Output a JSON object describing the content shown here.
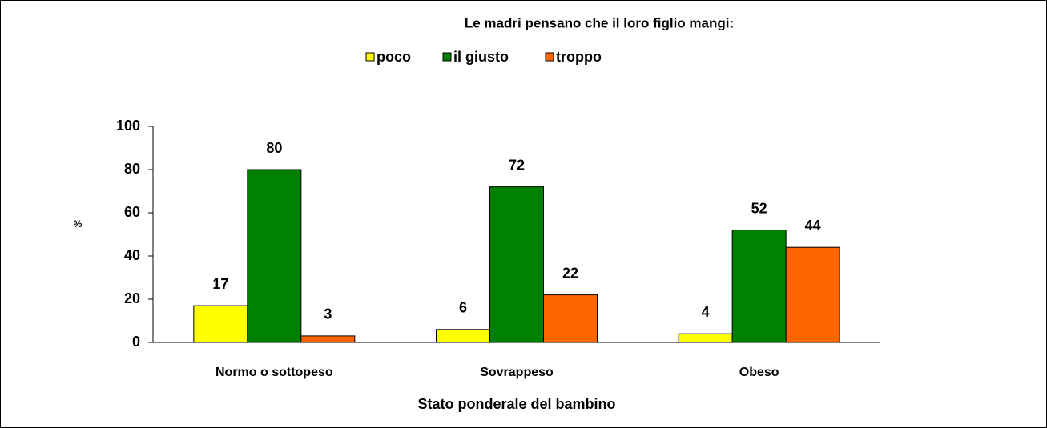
{
  "chart_data": {
    "type": "bar",
    "title": "Le madri pensano che il loro figlio mangi:",
    "y_label": "%",
    "x_label": "Stato ponderale del bambino",
    "categories": [
      "Normo o sottopeso",
      "Sovrappeso",
      "Obeso"
    ],
    "series": [
      {
        "name": "poco",
        "color": "#ffff00",
        "values": [
          17,
          6,
          4
        ]
      },
      {
        "name": "il giusto",
        "color": "#008000",
        "values": [
          80,
          72,
          52
        ]
      },
      {
        "name": "troppo",
        "color": "#ff6600",
        "values": [
          3,
          22,
          44
        ]
      }
    ],
    "ylim": [
      0,
      100
    ],
    "yticks": [
      0,
      20,
      40,
      60,
      80,
      100
    ],
    "grid": false,
    "legend": "top"
  }
}
